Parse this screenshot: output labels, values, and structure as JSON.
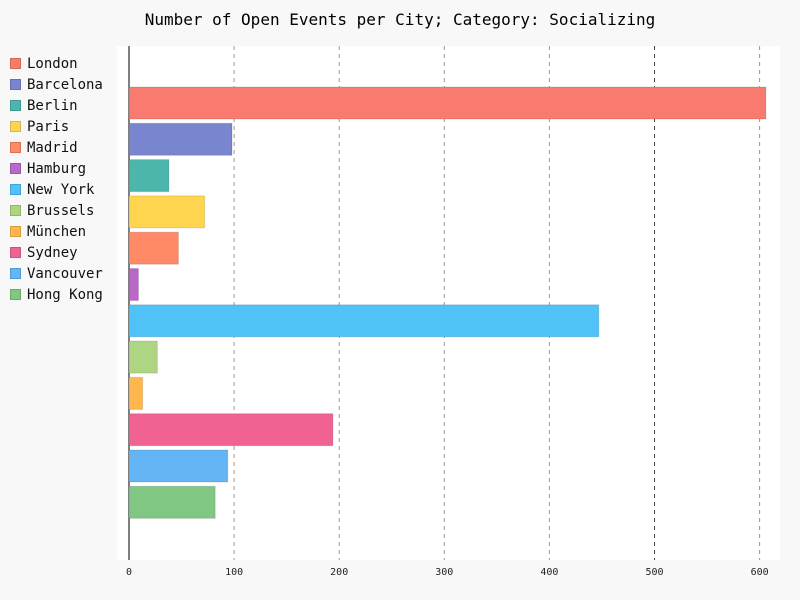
{
  "chart_data": {
    "type": "bar",
    "orientation": "horizontal",
    "title": "Number of Open Events per City; Category: Socializing",
    "xlabel": "",
    "ylabel": "",
    "xlim": [
      0,
      620
    ],
    "x_ticks": [
      0,
      100,
      200,
      300,
      400,
      500,
      600
    ],
    "grid": "vertical dashed",
    "legend_position": "left",
    "categories": [
      "London",
      "Barcelona",
      "Berlin",
      "Paris",
      "Madrid",
      "Hamburg",
      "New York",
      "Brussels",
      "München",
      "Sydney",
      "Vancouver",
      "Hong Kong"
    ],
    "values": [
      606,
      98,
      38,
      72,
      47,
      9,
      447,
      27,
      13,
      194,
      94,
      82
    ],
    "colors": [
      "#f97b6f",
      "#7986cf",
      "#4db6ac",
      "#ffd54f",
      "#ff8a65",
      "#ba68c8",
      "#4fc3f7",
      "#aed581",
      "#ffb74d",
      "#f06292",
      "#64b5f6",
      "#81c784"
    ]
  }
}
